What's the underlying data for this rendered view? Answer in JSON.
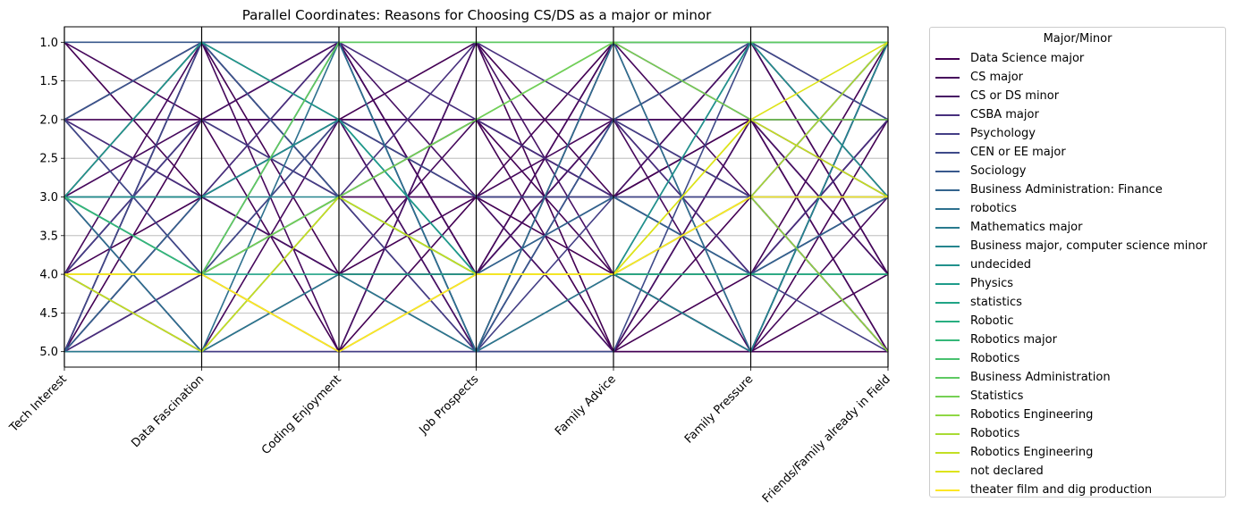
{
  "chart_data": {
    "type": "parallel_coordinates",
    "title": "Parallel Coordinates: Reasons for Choosing CS/DS as a major or minor",
    "axes": [
      "Tech Interest",
      "Data Fascination",
      "Coding Enjoyment",
      "Job Prospects",
      "Family Advice",
      "Family Pressure",
      "Friends/Family already in Field"
    ],
    "ylim": [
      5.2,
      0.8
    ],
    "yticks": [
      "1.0",
      "1.5",
      "2.0",
      "2.5",
      "3.0",
      "3.5",
      "4.0",
      "4.5",
      "5.0"
    ],
    "ytick_values": [
      1.0,
      1.5,
      2.0,
      2.5,
      3.0,
      3.5,
      4.0,
      4.5,
      5.0
    ],
    "grid": true,
    "legend": {
      "title": "Major/Minor",
      "placement": "outside-right",
      "entries": [
        {
          "label": "Data Science major",
          "color": "#440154"
        },
        {
          "label": "CS major",
          "color": "#46085c"
        },
        {
          "label": "CS or DS minor",
          "color": "#471164"
        },
        {
          "label": "CSBA major",
          "color": "#472f7d"
        },
        {
          "label": "Psychology",
          "color": "#433e85"
        },
        {
          "label": "CEN or EE major",
          "color": "#3e4a89"
        },
        {
          "label": "Sociology",
          "color": "#38588c"
        },
        {
          "label": "Business Administration: Finance",
          "color": "#33638d"
        },
        {
          "label": "robotics",
          "color": "#2d708e"
        },
        {
          "label": "Mathematics major",
          "color": "#297a8e"
        },
        {
          "label": "Business major, computer science minor",
          "color": "#25858e"
        },
        {
          "label": "undecided",
          "color": "#21918c"
        },
        {
          "label": "Physics",
          "color": "#1e9b8a"
        },
        {
          "label": "statistics",
          "color": "#20a486"
        },
        {
          "label": "Robotic",
          "color": "#28ae80"
        },
        {
          "label": "Robotics major",
          "color": "#35b779"
        },
        {
          "label": "Robotics",
          "color": "#48c16e"
        },
        {
          "label": "Business Administration",
          "color": "#5ec962"
        },
        {
          "label": "Statistics",
          "color": "#75d054"
        },
        {
          "label": "Robotics Engineering",
          "color": "#8fd744"
        },
        {
          "label": "Robotics",
          "color": "#a8db34"
        },
        {
          "label": "Robotics Engineering",
          "color": "#c2df23"
        },
        {
          "label": "not declared",
          "color": "#dde318"
        },
        {
          "label": "theater film and dig production",
          "color": "#fde725"
        }
      ]
    },
    "series": [
      {
        "name": "Data Science major",
        "color": "#440154",
        "lines": [
          [
            5,
            5,
            5,
            5,
            5,
            5,
            5
          ],
          [
            4,
            5,
            4,
            3,
            4,
            5,
            2
          ],
          [
            2,
            2,
            1,
            4,
            1,
            2,
            4
          ],
          [
            1,
            3,
            2,
            5,
            2,
            1,
            3
          ],
          [
            3,
            1,
            3,
            2,
            5,
            4,
            1
          ],
          [
            5,
            4,
            2,
            3,
            1,
            1,
            2
          ],
          [
            4,
            2,
            5,
            1,
            3,
            2,
            5
          ],
          [
            2,
            3,
            4,
            4,
            2,
            3,
            1
          ],
          [
            3,
            4,
            5,
            3,
            5,
            5,
            4
          ],
          [
            5,
            1,
            1,
            4,
            4,
            4,
            3
          ],
          [
            4,
            3,
            2,
            1,
            5,
            3,
            5
          ],
          [
            3,
            5,
            3,
            3,
            3,
            2,
            2
          ],
          [
            2,
            1,
            4,
            5,
            1,
            1,
            4
          ],
          [
            5,
            2,
            2,
            2,
            4,
            5,
            1
          ],
          [
            4,
            4,
            3,
            4,
            2,
            2,
            3
          ]
        ]
      },
      {
        "name": "CS major",
        "color": "#46085c",
        "lines": [
          [
            1,
            2,
            2,
            2,
            2,
            2,
            2
          ],
          [
            3,
            2,
            3,
            3,
            3,
            3,
            3
          ],
          [
            4,
            1,
            5,
            4,
            1,
            5,
            1
          ],
          [
            2,
            4,
            1,
            5,
            5,
            2,
            5
          ],
          [
            5,
            3,
            4,
            2,
            3,
            1,
            4
          ],
          [
            3,
            3,
            1,
            4,
            4,
            4,
            2
          ],
          [
            4,
            5,
            2,
            3,
            2,
            5,
            3
          ],
          [
            5,
            1,
            3,
            5,
            1,
            3,
            5
          ]
        ]
      },
      {
        "name": "CS or DS minor",
        "color": "#471164",
        "lines": [
          [
            3,
            1,
            2,
            5,
            4,
            5,
            1
          ],
          [
            4,
            2,
            1,
            3,
            5,
            2,
            4
          ],
          [
            5,
            3,
            4,
            4,
            2,
            4,
            2
          ],
          [
            2,
            1,
            3,
            2,
            3,
            1,
            3
          ],
          [
            4,
            4,
            5,
            1,
            4,
            3,
            5
          ]
        ]
      },
      {
        "name": "CSBA major",
        "color": "#472f7d",
        "lines": [
          [
            2,
            3,
            1,
            2,
            3,
            4,
            4
          ],
          [
            5,
            4,
            3,
            1,
            2,
            4,
            2
          ]
        ]
      },
      {
        "name": "Psychology",
        "color": "#433e85",
        "lines": [
          [
            4,
            2,
            3,
            5,
            2,
            3,
            3
          ],
          [
            3,
            5,
            5,
            5,
            3,
            4,
            5
          ]
        ]
      },
      {
        "name": "CEN or EE major",
        "color": "#3e4a89",
        "lines": [
          [
            5,
            1,
            1,
            5,
            5,
            1,
            2
          ],
          [
            2,
            4,
            2,
            3,
            3,
            3,
            1
          ]
        ]
      },
      {
        "name": "Sociology",
        "color": "#38588c",
        "lines": [
          [
            1,
            1,
            1,
            5,
            2,
            1,
            1
          ],
          [
            2,
            1,
            3,
            4,
            3,
            4,
            3
          ]
        ]
      },
      {
        "name": "Business Administration: Finance",
        "color": "#33638d",
        "lines": [
          [
            5,
            3,
            2,
            4,
            3,
            4,
            3
          ]
        ]
      },
      {
        "name": "robotics",
        "color": "#2d708e",
        "lines": [
          [
            3,
            5,
            1,
            5,
            1,
            5,
            1
          ]
        ]
      },
      {
        "name": "Mathematics major",
        "color": "#297a8e",
        "lines": [
          [
            5,
            5,
            4,
            5,
            4,
            1,
            1
          ]
        ]
      },
      {
        "name": "Business major, computer science minor",
        "color": "#25858e",
        "lines": [
          [
            3,
            3,
            3,
            4,
            4,
            5,
            1
          ]
        ]
      },
      {
        "name": "undecided",
        "color": "#21918c",
        "lines": [
          [
            3,
            3,
            2,
            4,
            4,
            1,
            3
          ]
        ]
      },
      {
        "name": "Physics",
        "color": "#1e9b8a",
        "lines": [
          [
            3,
            1,
            2,
            4,
            4,
            3,
            3
          ]
        ]
      },
      {
        "name": "statistics",
        "color": "#20a486",
        "lines": [
          [
            3,
            4,
            4,
            4,
            4,
            4,
            4
          ]
        ]
      },
      {
        "name": "Robotic",
        "color": "#28ae80",
        "lines": [
          [
            3,
            4,
            3,
            4,
            4,
            4,
            4
          ]
        ]
      },
      {
        "name": "Robotics major",
        "color": "#35b779",
        "lines": [
          [
            3,
            4,
            3,
            2,
            1,
            1,
            1
          ]
        ]
      },
      {
        "name": "Robotics",
        "color": "#48c16e",
        "lines": [
          [
            4,
            4,
            1,
            1,
            1,
            1,
            1
          ]
        ]
      },
      {
        "name": "Business Administration",
        "color": "#5ec962",
        "lines": [
          [
            4,
            4,
            1,
            1,
            1,
            1,
            1
          ]
        ]
      },
      {
        "name": "Statistics",
        "color": "#75d054",
        "lines": [
          [
            4,
            4,
            3,
            2,
            1,
            2,
            2
          ]
        ]
      },
      {
        "name": "Robotics Engineering",
        "color": "#8fd744",
        "lines": [
          [
            4,
            4,
            5,
            4,
            4,
            3,
            5
          ]
        ]
      },
      {
        "name": "Robotics",
        "color": "#a8db34",
        "lines": [
          [
            4,
            5,
            3,
            4,
            4,
            3,
            1
          ]
        ]
      },
      {
        "name": "Robotics Engineering",
        "color": "#c2df23",
        "lines": [
          [
            4,
            5,
            3,
            4,
            4,
            2,
            3
          ]
        ]
      },
      {
        "name": "not declared",
        "color": "#dde318",
        "lines": [
          [
            4,
            4,
            5,
            4,
            4,
            2,
            1
          ]
        ]
      },
      {
        "name": "theater film and dig production",
        "color": "#fde725",
        "lines": [
          [
            4,
            4,
            5,
            4,
            4,
            3,
            3
          ]
        ]
      }
    ]
  }
}
